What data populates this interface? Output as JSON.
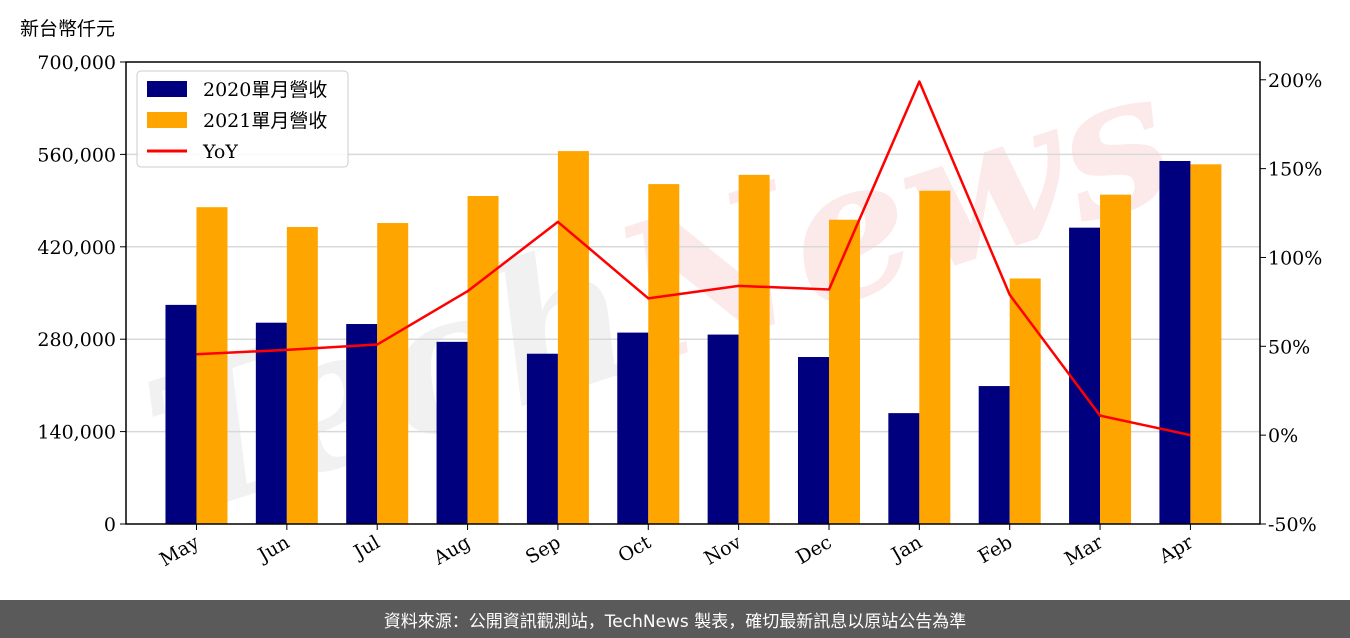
{
  "unit_label": "新台幣仟元",
  "footer": "資料來源：公開資訊觀測站，TechNews 製表，確切最新訊息以原站公告為準",
  "watermark": {
    "part1": "Tech",
    "part2": "News"
  },
  "colors": {
    "series_2020": "#00007f",
    "series_2021": "#ffa500",
    "yoy": "#ff0000",
    "grid": "#d9d9d9"
  },
  "chart_data": {
    "type": "bar",
    "categories": [
      "May",
      "Jun",
      "Jul",
      "Aug",
      "Sep",
      "Oct",
      "Nov",
      "Dec",
      "Jan",
      "Feb",
      "Mar",
      "Apr"
    ],
    "series": [
      {
        "name": "2020單月營收",
        "values": [
          332000,
          305000,
          303000,
          276000,
          258000,
          290000,
          287000,
          253000,
          168000,
          209000,
          449000,
          550000
        ]
      },
      {
        "name": "2021單月營收",
        "values": [
          480000,
          450000,
          456000,
          497000,
          565000,
          515000,
          529000,
          461000,
          505000,
          372000,
          499000,
          545000
        ]
      }
    ],
    "line_series": {
      "name": "YoY",
      "axis": "right",
      "values": [
        45.5,
        48,
        51,
        81,
        120,
        77,
        84,
        82,
        199,
        79,
        11,
        0
      ]
    },
    "yticks": [
      "0",
      "140,000",
      "280,000",
      "420,000",
      "560,000",
      "700,000"
    ],
    "y2ticks": [
      "-50%",
      "0%",
      "50%",
      "100%",
      "150%",
      "200%"
    ],
    "ylim": [
      0,
      700000
    ],
    "y2lim": [
      -50,
      210
    ],
    "legend_position": "top-left",
    "grid": "horizontal"
  }
}
